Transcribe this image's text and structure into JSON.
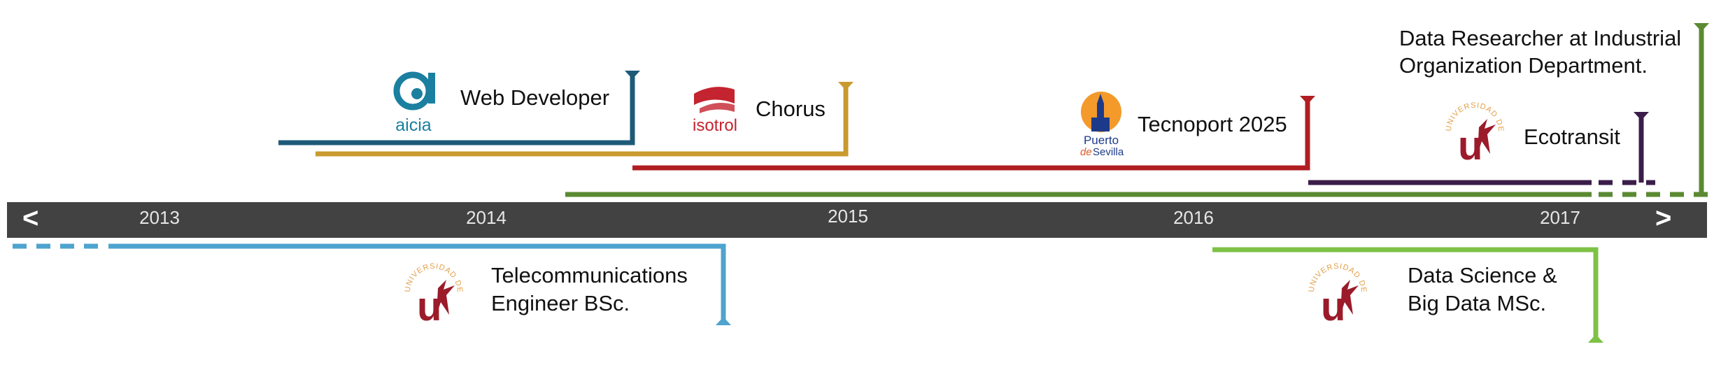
{
  "timeline": {
    "bar_color": "#424242",
    "year_color": "#e6e6e6",
    "years": [
      "2013",
      "2014",
      "2015",
      "2016",
      "2017"
    ],
    "nav": {
      "prev": "<",
      "next": ">"
    }
  },
  "logos": {
    "aicia": {
      "text": "aicia",
      "color": "#1b7fa0"
    },
    "isotrol": {
      "text": "isotrol",
      "color": "#c4242f"
    },
    "puerto": {
      "line1": "Puerto",
      "line2a": "de",
      "line2b": "Sevilla",
      "sun_color": "#f39a2b",
      "text_color": "#1d3a8a",
      "accent_color": "#e05a2a"
    },
    "us": {
      "text": "UNIVERSIDAD DE SEVILLA",
      "color": "#9b1b2a",
      "ring_color": "#e2a14a"
    }
  },
  "milestones": {
    "web_developer": {
      "label": "Web Developer",
      "color": "#1e5a78"
    },
    "chorus": {
      "label": "Chorus",
      "color": "#c99a2e"
    },
    "tecnoport": {
      "label": "Tecnoport 2025",
      "color": "#b01e22"
    },
    "ecotransit": {
      "label": "Ecotransit",
      "color": "#3b1d4a"
    },
    "data_researcher": {
      "line1": "Data Researcher at Industrial",
      "line2": "Organization Department.",
      "color": "#5a8a32"
    },
    "telecom": {
      "line1": "Telecommunications",
      "line2": "Engineer BSc.",
      "color": "#4ea3cf"
    },
    "data_science": {
      "line1": "Data Science &",
      "line2": "Big Data MSc.",
      "color": "#7ec245"
    }
  }
}
